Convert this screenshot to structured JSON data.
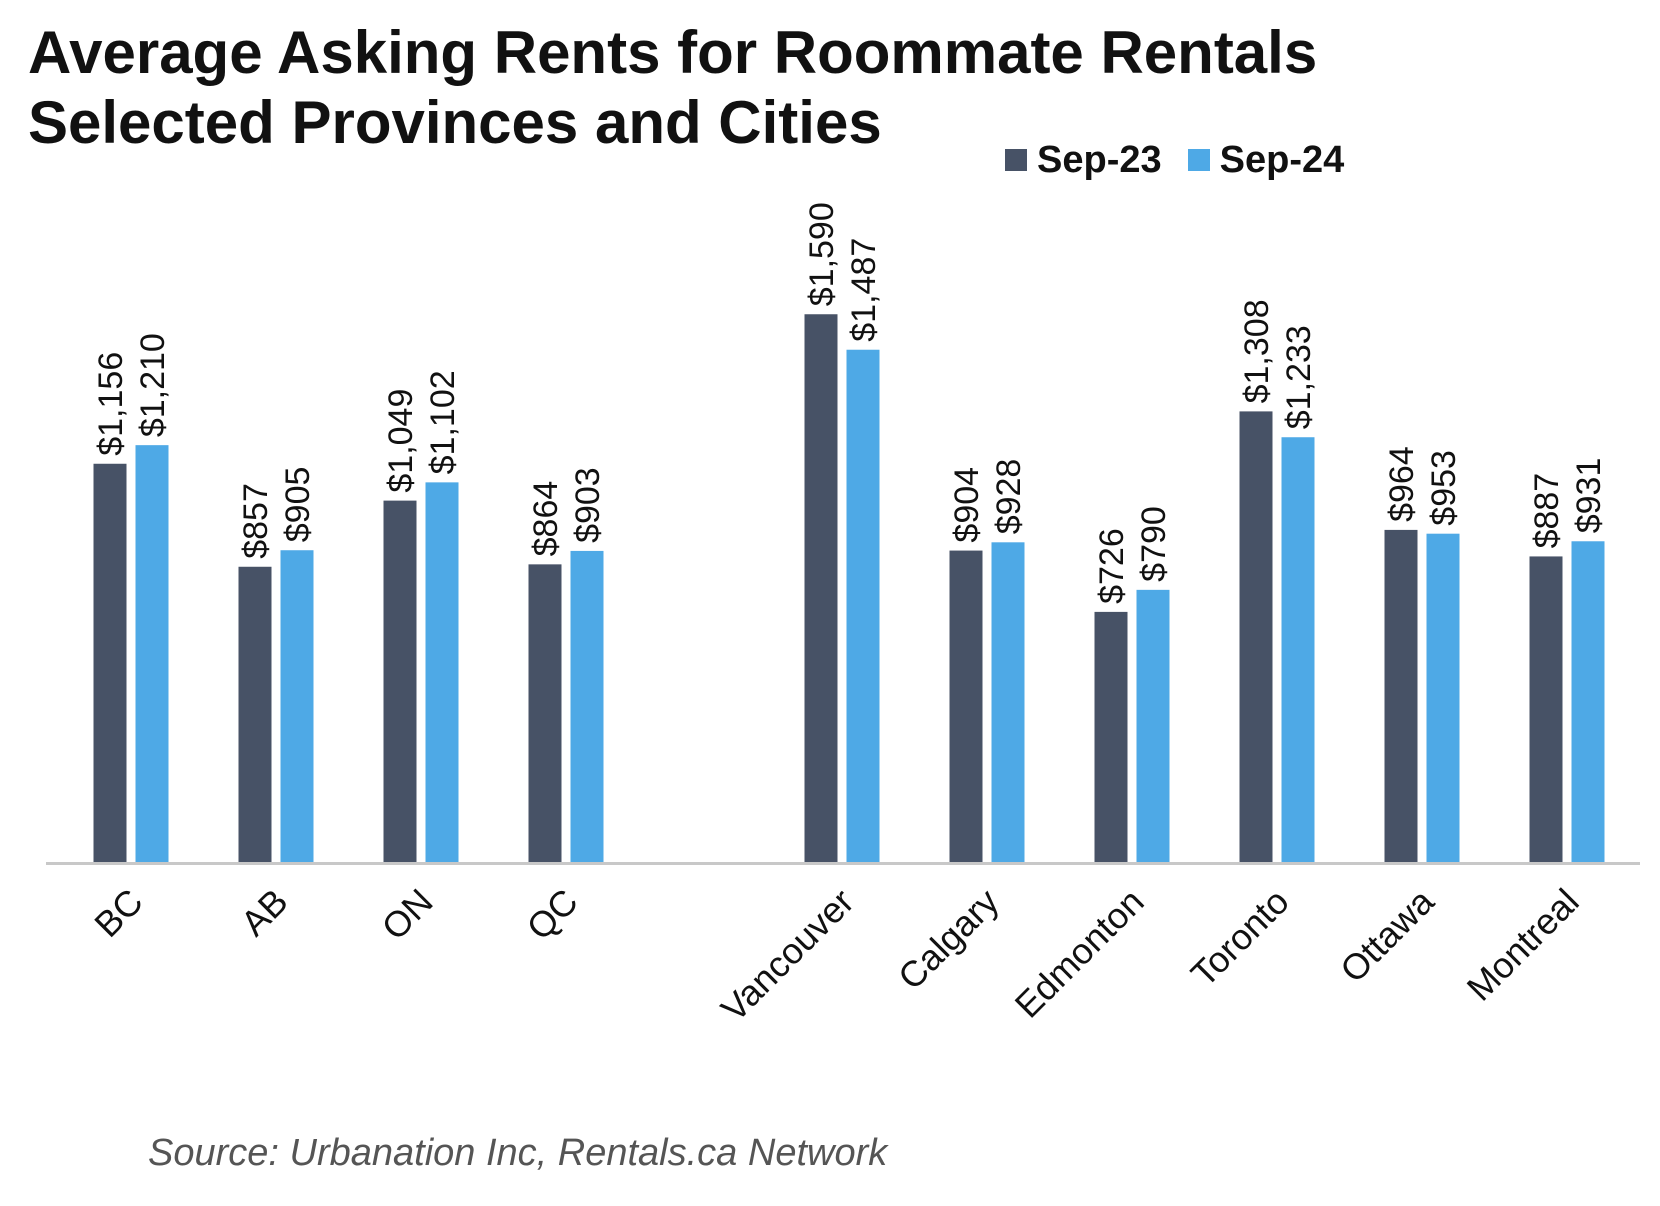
{
  "title": "Average Asking Rents for Roommate Rentals",
  "subtitle": "Selected Provinces and Cities",
  "source": "Source: Urbanation Inc, Rentals.ca Network",
  "colors": {
    "sep23": "#475266",
    "sep24": "#4ea9e6",
    "axis": "#c8c8c8"
  },
  "chart_data": {
    "type": "bar",
    "categories": [
      "BC",
      "AB",
      "ON",
      "QC",
      "Vancouver",
      "Calgary",
      "Edmonton",
      "Toronto",
      "Ottawa",
      "Montreal"
    ],
    "series": [
      {
        "name": "Sep-23",
        "values": [
          1156,
          857,
          1049,
          864,
          1590,
          904,
          726,
          1308,
          964,
          887
        ],
        "labels": [
          "$1,156",
          "$857",
          "$1,049",
          "$864",
          "$1,590",
          "$904",
          "$726",
          "$1,308",
          "$964",
          "$887"
        ]
      },
      {
        "name": "Sep-24",
        "values": [
          1210,
          905,
          1102,
          903,
          1487,
          928,
          790,
          1233,
          953,
          931
        ],
        "labels": [
          "$1,210",
          "$905",
          "$1,102",
          "$903",
          "$1,487",
          "$928",
          "$790",
          "$1,233",
          "$953",
          "$931"
        ]
      }
    ],
    "ylim": [
      0,
      1600
    ],
    "grid": false,
    "legend_position": "top-right",
    "xlabel": "",
    "ylabel": ""
  }
}
